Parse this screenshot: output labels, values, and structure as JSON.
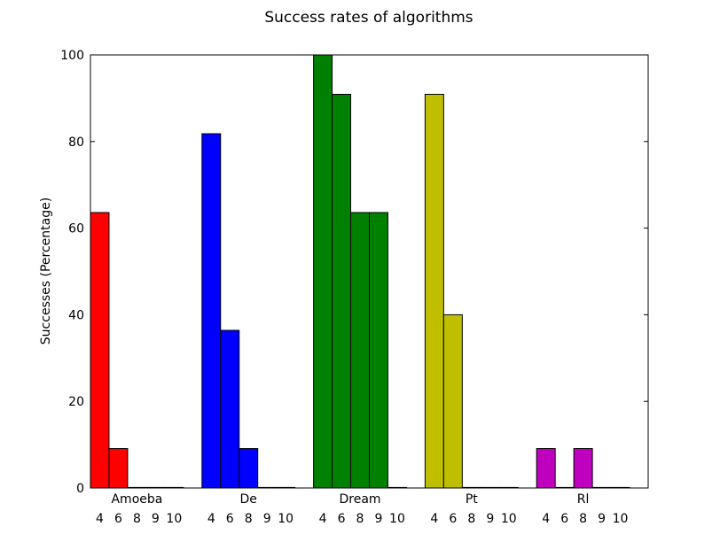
{
  "chart_data": {
    "type": "bar",
    "title": "Success rates of algorithms",
    "xlabel": "",
    "ylabel": "Successes (Percentage)",
    "ylim": [
      0,
      100
    ],
    "yticks": [
      0,
      20,
      40,
      60,
      80,
      100
    ],
    "grid": false,
    "legend": "none",
    "sub_categories": [
      "4",
      "6",
      "8",
      "9",
      "10"
    ],
    "groups": [
      {
        "label": "Amoeba",
        "color": "#ff0000",
        "values": [
          63.6,
          9.1,
          0,
          0,
          0
        ]
      },
      {
        "label": "De",
        "color": "#0000ff",
        "values": [
          81.8,
          36.4,
          9.1,
          0,
          0
        ]
      },
      {
        "label": "Dream",
        "color": "#008000",
        "values": [
          100,
          90.9,
          63.6,
          63.6,
          0
        ]
      },
      {
        "label": "Pt",
        "color": "#bfbf00",
        "values": [
          90.9,
          40,
          0,
          0,
          0
        ]
      },
      {
        "label": "Rl",
        "color": "#bf00bf",
        "values": [
          9.1,
          0,
          9.1,
          0,
          0
        ]
      }
    ]
  }
}
